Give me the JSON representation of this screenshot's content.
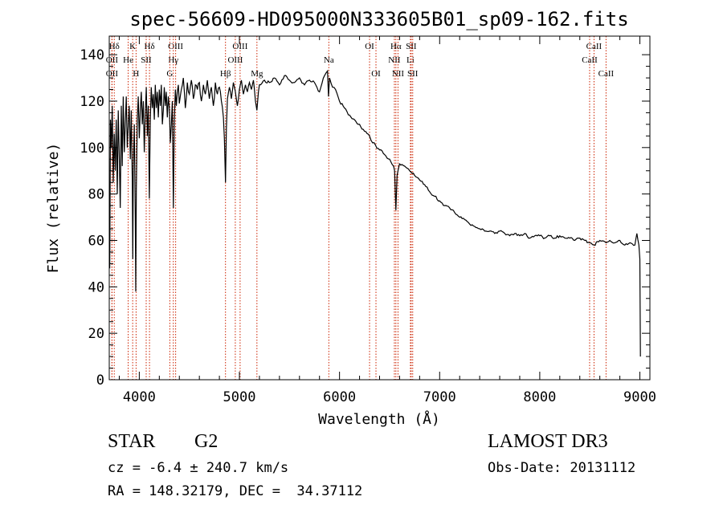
{
  "chart_data": {
    "type": "line",
    "title": "spec-56609-HD095000N333605B01_sp09-162.fits",
    "xlabel": "Wavelength (Å)",
    "ylabel": "Flux (relative)",
    "xlim": [
      3700,
      9100
    ],
    "ylim": [
      0,
      148
    ],
    "x_ticks": [
      4000,
      5000,
      6000,
      7000,
      8000,
      9000
    ],
    "y_ticks": [
      0,
      20,
      40,
      60,
      80,
      100,
      120,
      140
    ],
    "grid": false,
    "legend": "none",
    "series": [
      {
        "name": "flux",
        "points": [
          [
            3705,
            48
          ],
          [
            3712,
            112
          ],
          [
            3720,
            100
          ],
          [
            3730,
            118
          ],
          [
            3740,
            85
          ],
          [
            3750,
            106
          ],
          [
            3760,
            90
          ],
          [
            3770,
            112
          ],
          [
            3780,
            80
          ],
          [
            3790,
            116
          ],
          [
            3800,
            96
          ],
          [
            3810,
            74
          ],
          [
            3820,
            118
          ],
          [
            3830,
            92
          ],
          [
            3840,
            122
          ],
          [
            3850,
            98
          ],
          [
            3860,
            110
          ],
          [
            3870,
            122
          ],
          [
            3880,
            100
          ],
          [
            3890,
            110
          ],
          [
            3900,
            118
          ],
          [
            3910,
            95
          ],
          [
            3920,
            116
          ],
          [
            3930,
            85
          ],
          [
            3935,
            52
          ],
          [
            3940,
            90
          ],
          [
            3950,
            110
          ],
          [
            3960,
            70
          ],
          [
            3965,
            38
          ],
          [
            3970,
            82
          ],
          [
            3980,
            112
          ],
          [
            3990,
            122
          ],
          [
            4000,
            104
          ],
          [
            4010,
            116
          ],
          [
            4020,
            124
          ],
          [
            4030,
            110
          ],
          [
            4040,
            120
          ],
          [
            4050,
            98
          ],
          [
            4060,
            115
          ],
          [
            4070,
            126
          ],
          [
            4080,
            105
          ],
          [
            4090,
            118
          ],
          [
            4100,
            78
          ],
          [
            4110,
            112
          ],
          [
            4120,
            126
          ],
          [
            4130,
            117
          ],
          [
            4140,
            123
          ],
          [
            4150,
            112
          ],
          [
            4160,
            127
          ],
          [
            4170,
            117
          ],
          [
            4180,
            124
          ],
          [
            4190,
            113
          ],
          [
            4200,
            125
          ],
          [
            4210,
            118
          ],
          [
            4220,
            127
          ],
          [
            4230,
            110
          ],
          [
            4240,
            116
          ],
          [
            4250,
            126
          ],
          [
            4260,
            118
          ],
          [
            4270,
            124
          ],
          [
            4280,
            113
          ],
          [
            4290,
            122
          ],
          [
            4300,
            117
          ],
          [
            4310,
            102
          ],
          [
            4320,
            110
          ],
          [
            4330,
            120
          ],
          [
            4340,
            74
          ],
          [
            4350,
            112
          ],
          [
            4360,
            125
          ],
          [
            4370,
            118
          ],
          [
            4380,
            124
          ],
          [
            4390,
            127
          ],
          [
            4400,
            119
          ],
          [
            4420,
            125
          ],
          [
            4440,
            130
          ],
          [
            4460,
            117
          ],
          [
            4480,
            128
          ],
          [
            4500,
            123
          ],
          [
            4520,
            129
          ],
          [
            4540,
            121
          ],
          [
            4560,
            127
          ],
          [
            4580,
            125
          ],
          [
            4600,
            128
          ],
          [
            4620,
            120
          ],
          [
            4640,
            127
          ],
          [
            4660,
            123
          ],
          [
            4680,
            129
          ],
          [
            4700,
            121
          ],
          [
            4720,
            126
          ],
          [
            4740,
            118
          ],
          [
            4760,
            128
          ],
          [
            4780,
            123
          ],
          [
            4800,
            126
          ],
          [
            4820,
            120
          ],
          [
            4840,
            113
          ],
          [
            4850,
            104
          ],
          [
            4861,
            85
          ],
          [
            4870,
            108
          ],
          [
            4880,
            121
          ],
          [
            4900,
            126
          ],
          [
            4920,
            121
          ],
          [
            4940,
            128
          ],
          [
            4960,
            124
          ],
          [
            4980,
            118
          ],
          [
            5000,
            125
          ],
          [
            5020,
            129
          ],
          [
            5040,
            123
          ],
          [
            5060,
            127
          ],
          [
            5080,
            124
          ],
          [
            5100,
            128
          ],
          [
            5120,
            125
          ],
          [
            5140,
            129
          ],
          [
            5160,
            120
          ],
          [
            5175,
            116
          ],
          [
            5190,
            124
          ],
          [
            5200,
            127
          ],
          [
            5250,
            129
          ],
          [
            5300,
            128
          ],
          [
            5350,
            130
          ],
          [
            5400,
            127
          ],
          [
            5450,
            131
          ],
          [
            5500,
            129
          ],
          [
            5550,
            128
          ],
          [
            5600,
            130
          ],
          [
            5650,
            127
          ],
          [
            5700,
            129
          ],
          [
            5750,
            128
          ],
          [
            5800,
            124
          ],
          [
            5850,
            131
          ],
          [
            5880,
            133
          ],
          [
            5890,
            122
          ],
          [
            5900,
            130
          ],
          [
            5930,
            126
          ],
          [
            5960,
            125
          ],
          [
            6000,
            120
          ],
          [
            6050,
            117
          ],
          [
            6100,
            114
          ],
          [
            6150,
            112
          ],
          [
            6200,
            110
          ],
          [
            6250,
            107
          ],
          [
            6300,
            105
          ],
          [
            6330,
            102
          ],
          [
            6360,
            101
          ],
          [
            6400,
            99
          ],
          [
            6450,
            97
          ],
          [
            6500,
            95
          ],
          [
            6540,
            92
          ],
          [
            6550,
            90
          ],
          [
            6563,
            73
          ],
          [
            6575,
            88
          ],
          [
            6600,
            93
          ],
          [
            6650,
            92
          ],
          [
            6700,
            90
          ],
          [
            6750,
            88
          ],
          [
            6800,
            86
          ],
          [
            6850,
            84
          ],
          [
            6900,
            81
          ],
          [
            6950,
            79
          ],
          [
            7000,
            77
          ],
          [
            7050,
            75
          ],
          [
            7100,
            74
          ],
          [
            7150,
            72
          ],
          [
            7200,
            70
          ],
          [
            7250,
            69
          ],
          [
            7300,
            67
          ],
          [
            7350,
            66
          ],
          [
            7400,
            65
          ],
          [
            7450,
            64
          ],
          [
            7500,
            64
          ],
          [
            7550,
            63
          ],
          [
            7600,
            64
          ],
          [
            7650,
            63
          ],
          [
            7700,
            62
          ],
          [
            7750,
            63
          ],
          [
            7800,
            62
          ],
          [
            7850,
            63
          ],
          [
            7900,
            61
          ],
          [
            7950,
            62
          ],
          [
            8000,
            62
          ],
          [
            8050,
            61
          ],
          [
            8100,
            62
          ],
          [
            8150,
            61
          ],
          [
            8200,
            62
          ],
          [
            8250,
            61
          ],
          [
            8300,
            61
          ],
          [
            8350,
            60
          ],
          [
            8400,
            61
          ],
          [
            8450,
            60
          ],
          [
            8498,
            59
          ],
          [
            8542,
            58
          ],
          [
            8600,
            60
          ],
          [
            8662,
            59
          ],
          [
            8700,
            60
          ],
          [
            8750,
            59
          ],
          [
            8800,
            60
          ],
          [
            8850,
            58
          ],
          [
            8900,
            59
          ],
          [
            8950,
            58
          ],
          [
            8970,
            63
          ],
          [
            8990,
            58
          ],
          [
            9000,
            52
          ],
          [
            9005,
            10
          ]
        ]
      }
    ],
    "line_markers": [
      {
        "label": "Hδ",
        "x": 3750,
        "row": 1
      },
      {
        "label": "OII",
        "x": 3727,
        "row": 2
      },
      {
        "label": "OII",
        "x": 3727,
        "row": 3
      },
      {
        "label": "K",
        "x": 3934,
        "row": 1
      },
      {
        "label": "He",
        "x": 3889,
        "row": 2
      },
      {
        "label": "H",
        "x": 3968,
        "row": 3
      },
      {
        "label": "Hδ",
        "x": 4102,
        "row": 1
      },
      {
        "label": "SII",
        "x": 4069,
        "row": 2
      },
      {
        "label": "OIII",
        "x": 4363,
        "row": 1
      },
      {
        "label": "Hγ",
        "x": 4340,
        "row": 2
      },
      {
        "label": "G",
        "x": 4305,
        "row": 3
      },
      {
        "label": "OIII",
        "x": 5007,
        "row": 1
      },
      {
        "label": "OIII",
        "x": 4959,
        "row": 2
      },
      {
        "label": "Hβ",
        "x": 4861,
        "row": 3
      },
      {
        "label": "Mg",
        "x": 5175,
        "row": 3
      },
      {
        "label": "Na",
        "x": 5893,
        "row": 2
      },
      {
        "label": "OI",
        "x": 6300,
        "row": 1
      },
      {
        "label": "OI",
        "x": 6364,
        "row": 3
      },
      {
        "label": "Hα",
        "x": 6563,
        "row": 1
      },
      {
        "label": "SII",
        "x": 6716,
        "row": 1
      },
      {
        "label": "NII",
        "x": 6548,
        "row": 2
      },
      {
        "label": "Li",
        "x": 6708,
        "row": 2
      },
      {
        "label": "NII",
        "x": 6584,
        "row": 3
      },
      {
        "label": "SII",
        "x": 6731,
        "row": 3
      },
      {
        "label": "CaII",
        "x": 8542,
        "row": 1
      },
      {
        "label": "CaII",
        "x": 8498,
        "row": 2
      },
      {
        "label": "CaII",
        "x": 8662,
        "row": 3
      }
    ]
  },
  "info": {
    "class_label": "STAR",
    "subclass_label": "G2",
    "survey": "LAMOST DR3",
    "redshift": "cz = -6.4 ± 240.7 km/s",
    "obs_date": "Obs-Date: 20131112",
    "coords": "RA = 148.32179, DEC =  34.37112"
  }
}
